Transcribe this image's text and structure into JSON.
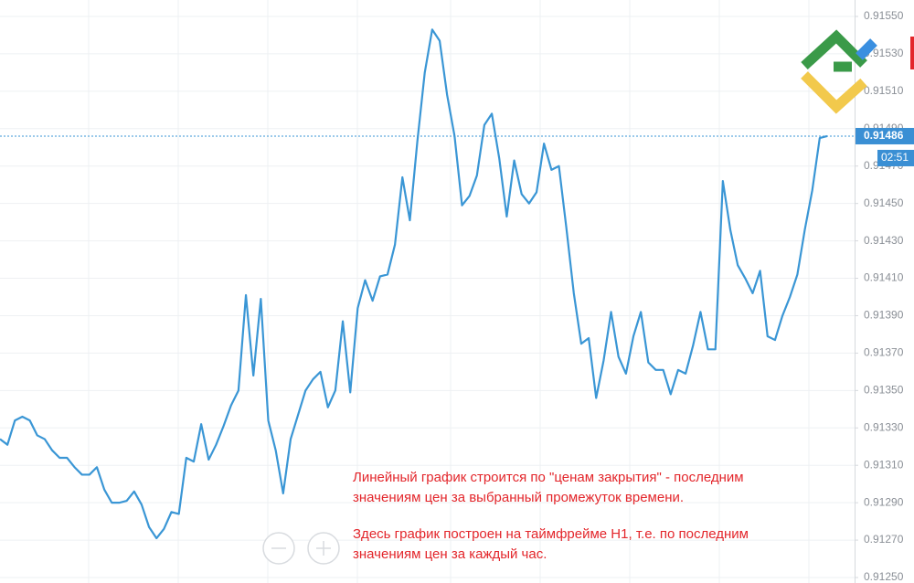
{
  "chart_data": {
    "type": "line",
    "color": "#3a96d5",
    "values": [
      0.91324,
      0.91321,
      0.91334,
      0.91336,
      0.91334,
      0.91326,
      0.91324,
      0.91318,
      0.91314,
      0.91314,
      0.91309,
      0.91305,
      0.91305,
      0.91309,
      0.91297,
      0.9129,
      0.9129,
      0.91291,
      0.91296,
      0.91289,
      0.91277,
      0.91271,
      0.91276,
      0.91285,
      0.91284,
      0.91314,
      0.91312,
      0.91332,
      0.91313,
      0.91321,
      0.91331,
      0.91342,
      0.9135,
      0.91401,
      0.91358,
      0.91399,
      0.91334,
      0.91318,
      0.91295,
      0.91324,
      0.91337,
      0.9135,
      0.91356,
      0.9136,
      0.91341,
      0.9135,
      0.91387,
      0.91349,
      0.91394,
      0.91409,
      0.91398,
      0.91411,
      0.91412,
      0.91428,
      0.91464,
      0.91441,
      0.91483,
      0.9152,
      0.91543,
      0.91537,
      0.91508,
      0.91486,
      0.91449,
      0.91454,
      0.91465,
      0.91492,
      0.91498,
      0.91474,
      0.91443,
      0.91473,
      0.91455,
      0.9145,
      0.91456,
      0.91482,
      0.91468,
      0.9147,
      0.91437,
      0.91402,
      0.91375,
      0.91378,
      0.91346,
      0.91366,
      0.91392,
      0.91368,
      0.91359,
      0.91379,
      0.91392,
      0.91365,
      0.91361,
      0.91361,
      0.91348,
      0.91361,
      0.91359,
      0.91374,
      0.91392,
      0.91372,
      0.91372,
      0.91462,
      0.91436,
      0.91417,
      0.9141,
      0.91402,
      0.91414,
      0.91379,
      0.91377,
      0.9139,
      0.914,
      0.91412,
      0.91436,
      0.91457,
      0.91485,
      0.91486
    ],
    "ylim": [
      0.9125,
      0.9155
    ],
    "yticks": [
      {
        "value": 0.9125,
        "label": "0.91250"
      },
      {
        "value": 0.9127,
        "label": "0.91270"
      },
      {
        "value": 0.9129,
        "label": "0.91290"
      },
      {
        "value": 0.9131,
        "label": "0.91310"
      },
      {
        "value": 0.9133,
        "label": "0.91330"
      },
      {
        "value": 0.9135,
        "label": "0.91350"
      },
      {
        "value": 0.9137,
        "label": "0.91370"
      },
      {
        "value": 0.9139,
        "label": "0.91390"
      },
      {
        "value": 0.9141,
        "label": "0.91410"
      },
      {
        "value": 0.9143,
        "label": "0.91430"
      },
      {
        "value": 0.9145,
        "label": "0.91450"
      },
      {
        "value": 0.9147,
        "label": "0.91470"
      },
      {
        "value": 0.9149,
        "label": "0.91490"
      },
      {
        "value": 0.9151,
        "label": "0.91510"
      },
      {
        "value": 0.9153,
        "label": "0.91530"
      },
      {
        "value": 0.9155,
        "label": "0.91550"
      }
    ],
    "grid": true,
    "last_price": 0.91486,
    "timer": "02:51",
    "annotation": [
      "Линейный график строится по \"ценам закрытия\" - последним",
      "значениям цен за выбранный промежуток времени.",
      "Здесь график построен на таймфрейме H1, т.е. по последним",
      "значениям цен за каждый час."
    ]
  }
}
